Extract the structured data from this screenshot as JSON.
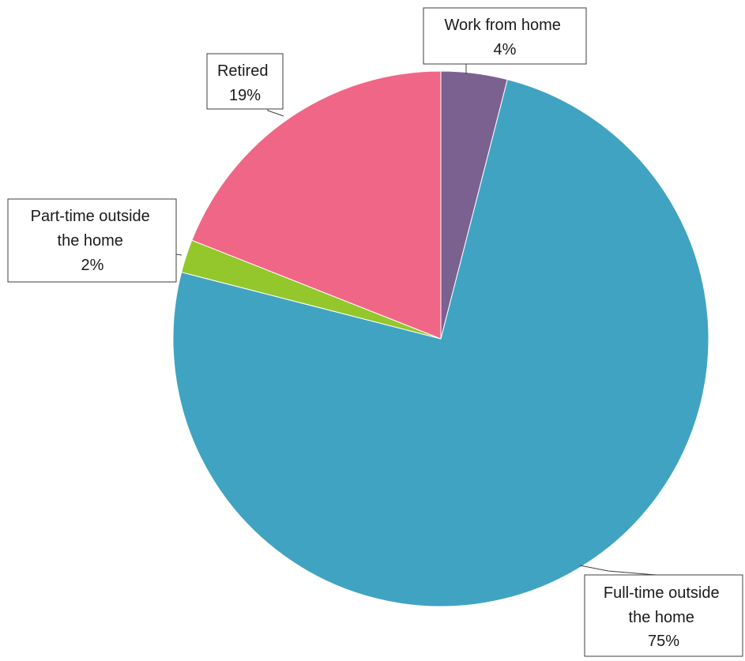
{
  "chart_data": {
    "type": "pie",
    "title": "",
    "slices": [
      {
        "key": "work-from-home",
        "category": "Work from home",
        "value": 4,
        "display": "4%",
        "color": "#7B6190"
      },
      {
        "key": "full-time",
        "category": "Full-time outside the home",
        "value": 75,
        "display": "75%",
        "color": "#40A3C2"
      },
      {
        "key": "part-time",
        "category": "Part-time outside the home",
        "value": 2,
        "display": "2%",
        "color": "#93C72B"
      },
      {
        "key": "retired",
        "category": "Retired",
        "value": 19,
        "display": "19%",
        "color": "#F06687"
      }
    ],
    "start_angle": "12 o'clock",
    "direction": "clockwise",
    "legend": "none",
    "data_labels": "callouts"
  }
}
